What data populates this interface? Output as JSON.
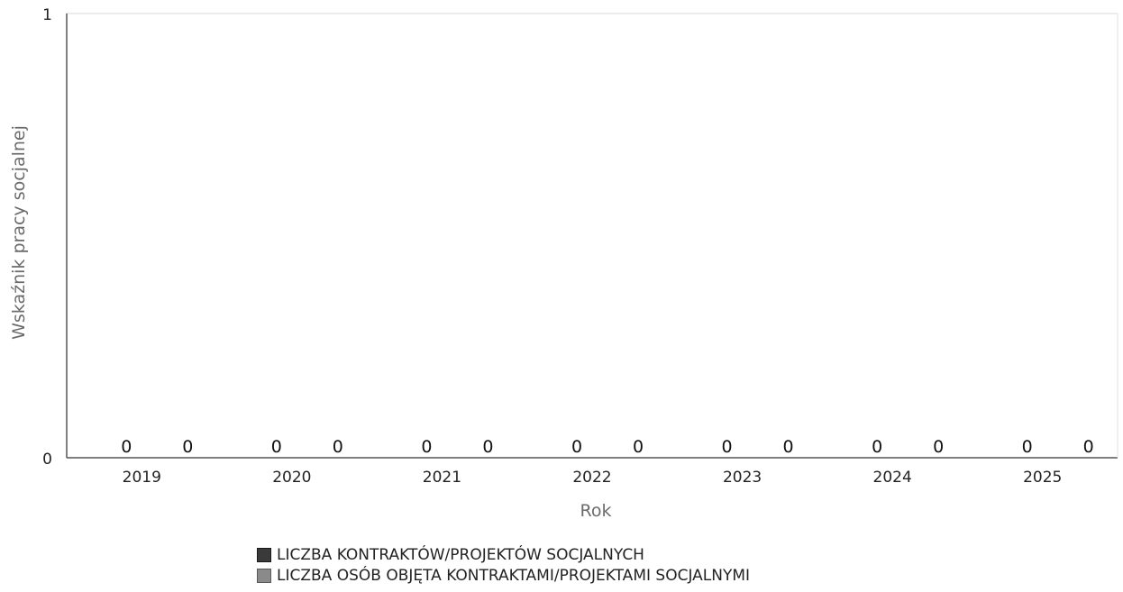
{
  "chart_data": {
    "type": "bar",
    "categories": [
      "2019",
      "2020",
      "2021",
      "2022",
      "2023",
      "2024",
      "2025"
    ],
    "series": [
      {
        "name": "LICZBA KONTRAKTÓW/PROJEKTÓW SOCJALNYCH",
        "values": [
          0,
          0,
          0,
          0,
          0,
          0,
          0
        ],
        "color": "#3a3a3a"
      },
      {
        "name": "LICZBA OSÓB OBJĘTA KONTRAKTAMI/PROJEKTAMI SOCJALNYMI",
        "values": [
          0,
          0,
          0,
          0,
          0,
          0,
          0
        ],
        "color": "#8a8a8a"
      }
    ],
    "xlabel": "Rok",
    "ylabel": "Wskaźnik pracy socjalnej",
    "ylim": [
      0,
      1
    ],
    "yticks": [
      "0",
      "1"
    ],
    "data_labels": true,
    "grid": false,
    "legend_position": "bottom"
  }
}
